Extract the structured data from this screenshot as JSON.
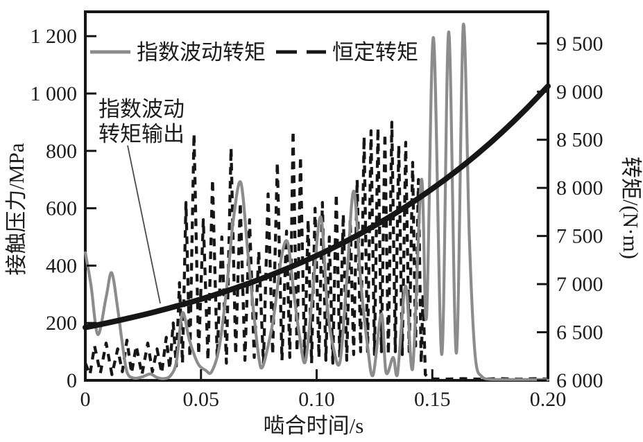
{
  "figure": {
    "background": "#ffffff",
    "frame_color": "#161616",
    "text_color": "#1c1c1c",
    "leader_color": "#4a4a4a"
  },
  "chart_data": {
    "type": "line",
    "title": "",
    "xlabel": "啮合时间/s",
    "ylabel_left": "接触压力/MPa",
    "ylabel_right": "转矩/(N·m)",
    "grid": false,
    "xlim": [
      0,
      0.2
    ],
    "ylim_left": [
      0,
      1285
    ],
    "ylim_right": [
      6000,
      9830
    ],
    "x_ticks": {
      "values": [
        0,
        0.05,
        0.1,
        0.15,
        0.2
      ],
      "labels": [
        "0",
        "0.05",
        "0.10",
        "0.15",
        "0.20"
      ]
    },
    "left_ticks": {
      "values": [
        0,
        200,
        400,
        600,
        800,
        1000,
        1200
      ],
      "labels": [
        "0",
        "200",
        "400",
        "600",
        "800",
        "1 000",
        "1 200"
      ]
    },
    "right_ticks": {
      "values": [
        6000,
        6500,
        7000,
        7500,
        8000,
        8500,
        9000,
        9500
      ],
      "labels": [
        "6 000",
        "6 500",
        "7 000",
        "7 500",
        "8 000",
        "8 500",
        "9 000",
        "9 500"
      ]
    },
    "legend": {
      "position": "top-inside",
      "items": [
        {
          "label": "指数波动转矩",
          "style": "solid",
          "color": "#8c8c8c"
        },
        {
          "label": "恒定转矩",
          "style": "dashed",
          "color": "#161616"
        }
      ]
    },
    "annotation": {
      "lines": [
        "指数波动",
        "转矩输出"
      ],
      "full_text": "指数波动转矩输出",
      "target_series": "torque-output"
    },
    "series": [
      {
        "id": "const-pressure",
        "name": "恒定转矩",
        "axis": "left",
        "unit": "MPa",
        "color": "#161616",
        "width": 4.3,
        "dash": "11 9",
        "smooth": false,
        "points": [
          [
            0,
            60
          ],
          [
            0.002,
            20
          ],
          [
            0.004,
            120
          ],
          [
            0.0065,
            25
          ],
          [
            0.009,
            130
          ],
          [
            0.0115,
            20
          ],
          [
            0.014,
            110
          ],
          [
            0.016,
            30
          ],
          [
            0.018,
            140
          ],
          [
            0.02,
            25
          ],
          [
            0.022,
            120
          ],
          [
            0.0245,
            20
          ],
          [
            0.027,
            130
          ],
          [
            0.029,
            30
          ],
          [
            0.031,
            110
          ],
          [
            0.033,
            25
          ],
          [
            0.035,
            150
          ],
          [
            0.0365,
            40
          ],
          [
            0.038,
            200
          ],
          [
            0.0393,
            50
          ],
          [
            0.0407,
            340
          ],
          [
            0.042,
            60
          ],
          [
            0.0435,
            620
          ],
          [
            0.0452,
            80
          ],
          [
            0.047,
            860
          ],
          [
            0.049,
            90
          ],
          [
            0.051,
            560
          ],
          [
            0.053,
            70
          ],
          [
            0.055,
            700
          ],
          [
            0.057,
            80
          ],
          [
            0.059,
            500
          ],
          [
            0.061,
            60
          ],
          [
            0.063,
            810
          ],
          [
            0.065,
            90
          ],
          [
            0.067,
            620
          ],
          [
            0.069,
            70
          ],
          [
            0.071,
            560
          ],
          [
            0.073,
            80
          ],
          [
            0.075,
            450
          ],
          [
            0.077,
            60
          ],
          [
            0.079,
            650
          ],
          [
            0.081,
            90
          ],
          [
            0.083,
            760
          ],
          [
            0.085,
            70
          ],
          [
            0.087,
            520
          ],
          [
            0.0884,
            80
          ],
          [
            0.0898,
            870
          ],
          [
            0.0915,
            100
          ],
          [
            0.093,
            780
          ],
          [
            0.0948,
            70
          ],
          [
            0.0963,
            560
          ],
          [
            0.0978,
            60
          ],
          [
            0.0993,
            600
          ],
          [
            0.101,
            80
          ],
          [
            0.1025,
            620
          ],
          [
            0.104,
            70
          ],
          [
            0.1055,
            500
          ],
          [
            0.107,
            60
          ],
          [
            0.1085,
            650
          ],
          [
            0.11,
            80
          ],
          [
            0.1115,
            580
          ],
          [
            0.113,
            70
          ],
          [
            0.1145,
            560
          ],
          [
            0.116,
            90
          ],
          [
            0.1175,
            700
          ],
          [
            0.119,
            100
          ],
          [
            0.1205,
            850
          ],
          [
            0.122,
            100
          ],
          [
            0.1235,
            870
          ],
          [
            0.125,
            90
          ],
          [
            0.1265,
            880
          ],
          [
            0.128,
            100
          ],
          [
            0.1295,
            860
          ],
          [
            0.131,
            90
          ],
          [
            0.1325,
            900
          ],
          [
            0.134,
            100
          ],
          [
            0.1355,
            820
          ],
          [
            0.137,
            90
          ],
          [
            0.1385,
            830
          ],
          [
            0.14,
            100
          ],
          [
            0.1415,
            760
          ],
          [
            0.1428,
            120
          ],
          [
            0.144,
            700
          ],
          [
            0.1452,
            60
          ],
          [
            0.146,
            300
          ],
          [
            0.147,
            20
          ],
          [
            0.149,
            5
          ],
          [
            0.156,
            4
          ],
          [
            0.163,
            6
          ],
          [
            0.171,
            4
          ],
          [
            0.179,
            6
          ],
          [
            0.187,
            4
          ],
          [
            0.195,
            6
          ],
          [
            0.2,
            4
          ]
        ]
      },
      {
        "id": "exp-fluct-pressure",
        "name": "指数波动转矩",
        "axis": "left",
        "unit": "MPa",
        "color": "#8c8c8c",
        "width": 4.2,
        "dash": "",
        "smooth": true,
        "points": [
          [
            0,
            445
          ],
          [
            0.0025,
            330
          ],
          [
            0.0054,
            160
          ],
          [
            0.009,
            290
          ],
          [
            0.0114,
            375
          ],
          [
            0.014,
            250
          ],
          [
            0.0158,
            140
          ],
          [
            0.018,
            30
          ],
          [
            0.021,
            8
          ],
          [
            0.0246,
            12
          ],
          [
            0.028,
            22
          ],
          [
            0.031,
            10
          ],
          [
            0.034,
            6
          ],
          [
            0.037,
            18
          ],
          [
            0.0395,
            70
          ],
          [
            0.042,
            235
          ],
          [
            0.045,
            140
          ],
          [
            0.0486,
            60
          ],
          [
            0.052,
            35
          ],
          [
            0.0546,
            30
          ],
          [
            0.058,
            120
          ],
          [
            0.0612,
            330
          ],
          [
            0.064,
            560
          ],
          [
            0.0672,
            690
          ],
          [
            0.0702,
            450
          ],
          [
            0.0726,
            250
          ],
          [
            0.075,
            80
          ],
          [
            0.0765,
            45
          ],
          [
            0.079,
            120
          ],
          [
            0.0816,
            230
          ],
          [
            0.0848,
            430
          ],
          [
            0.0875,
            480
          ],
          [
            0.0902,
            300
          ],
          [
            0.0927,
            150
          ],
          [
            0.0951,
            65
          ],
          [
            0.098,
            280
          ],
          [
            0.1017,
            570
          ],
          [
            0.1046,
            260
          ],
          [
            0.1071,
            120
          ],
          [
            0.1101,
            65
          ],
          [
            0.113,
            350
          ],
          [
            0.116,
            660
          ],
          [
            0.119,
            350
          ],
          [
            0.122,
            120
          ],
          [
            0.1244,
            18
          ],
          [
            0.128,
            232
          ],
          [
            0.13,
            28
          ],
          [
            0.1331,
            80
          ],
          [
            0.1349,
            18
          ],
          [
            0.1385,
            328
          ],
          [
            0.1415,
            40
          ],
          [
            0.1453,
            700
          ],
          [
            0.1475,
            220
          ],
          [
            0.1505,
            1195
          ],
          [
            0.1541,
            90
          ],
          [
            0.1571,
            1215
          ],
          [
            0.1604,
            95
          ],
          [
            0.1634,
            1240
          ],
          [
            0.166,
            500
          ],
          [
            0.1685,
            90
          ],
          [
            0.1715,
            12
          ],
          [
            0.176,
            3
          ],
          [
            0.185,
            2
          ],
          [
            0.2,
            2
          ]
        ]
      },
      {
        "id": "torque-output",
        "name": "指数波动转矩输出",
        "axis": "right",
        "unit": "N·m",
        "color": "#161616",
        "width": 8,
        "dash": "",
        "smooth": true,
        "points": [
          [
            0,
            6550
          ],
          [
            0.01,
            6599
          ],
          [
            0.02,
            6653
          ],
          [
            0.03,
            6711
          ],
          [
            0.04,
            6775
          ],
          [
            0.05,
            6844
          ],
          [
            0.06,
            6920
          ],
          [
            0.07,
            7002
          ],
          [
            0.08,
            7092
          ],
          [
            0.09,
            7190
          ],
          [
            0.1,
            7296
          ],
          [
            0.11,
            7412
          ],
          [
            0.12,
            7539
          ],
          [
            0.13,
            7677
          ],
          [
            0.14,
            7827
          ],
          [
            0.15,
            7991
          ],
          [
            0.16,
            8169
          ],
          [
            0.17,
            8363
          ],
          [
            0.18,
            8575
          ],
          [
            0.19,
            8806
          ],
          [
            0.2,
            9057
          ]
        ]
      }
    ]
  }
}
